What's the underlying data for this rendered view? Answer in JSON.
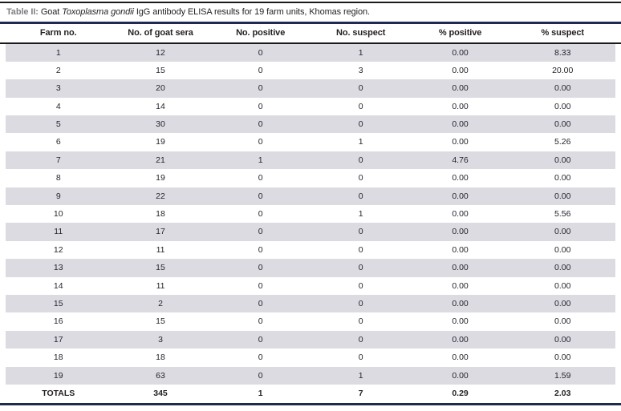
{
  "title": {
    "label": "Table II:",
    "pre_italic": " Goat ",
    "italic": "Toxoplasma gondii",
    "post_italic": " IgG antibody ELISA results for 19 farm units, Khomas region."
  },
  "table": {
    "columns": [
      "Farm no.",
      "No. of goat sera",
      "No. positive",
      "No. suspect",
      "% positive",
      "% suspect"
    ],
    "rows": [
      [
        "1",
        "12",
        "0",
        "1",
        "0.00",
        "8.33"
      ],
      [
        "2",
        "15",
        "0",
        "3",
        "0.00",
        "20.00"
      ],
      [
        "3",
        "20",
        "0",
        "0",
        "0.00",
        "0.00"
      ],
      [
        "4",
        "14",
        "0",
        "0",
        "0.00",
        "0.00"
      ],
      [
        "5",
        "30",
        "0",
        "0",
        "0.00",
        "0.00"
      ],
      [
        "6",
        "19",
        "0",
        "1",
        "0.00",
        "5.26"
      ],
      [
        "7",
        "21",
        "1",
        "0",
        "4.76",
        "0.00"
      ],
      [
        "8",
        "19",
        "0",
        "0",
        "0.00",
        "0.00"
      ],
      [
        "9",
        "22",
        "0",
        "0",
        "0.00",
        "0.00"
      ],
      [
        "10",
        "18",
        "0",
        "1",
        "0.00",
        "5.56"
      ],
      [
        "11",
        "17",
        "0",
        "0",
        "0.00",
        "0.00"
      ],
      [
        "12",
        "11",
        "0",
        "0",
        "0.00",
        "0.00"
      ],
      [
        "13",
        "15",
        "0",
        "0",
        "0.00",
        "0.00"
      ],
      [
        "14",
        "11",
        "0",
        "0",
        "0.00",
        "0.00"
      ],
      [
        "15",
        "2",
        "0",
        "0",
        "0.00",
        "0.00"
      ],
      [
        "16",
        "15",
        "0",
        "0",
        "0.00",
        "0.00"
      ],
      [
        "17",
        "3",
        "0",
        "0",
        "0.00",
        "0.00"
      ],
      [
        "18",
        "18",
        "0",
        "0",
        "0.00",
        "0.00"
      ],
      [
        "19",
        "63",
        "0",
        "1",
        "0.00",
        "1.59"
      ]
    ],
    "totals": [
      "TOTALS",
      "345",
      "1",
      "7",
      "0.29",
      "2.03"
    ]
  },
  "colors": {
    "accent_navy": "#1e2a52",
    "rule_black": "#1a1a1a",
    "row_stripe": "#dcdbe2",
    "title_label_gray": "#7e7f83",
    "text": "#231f20"
  }
}
